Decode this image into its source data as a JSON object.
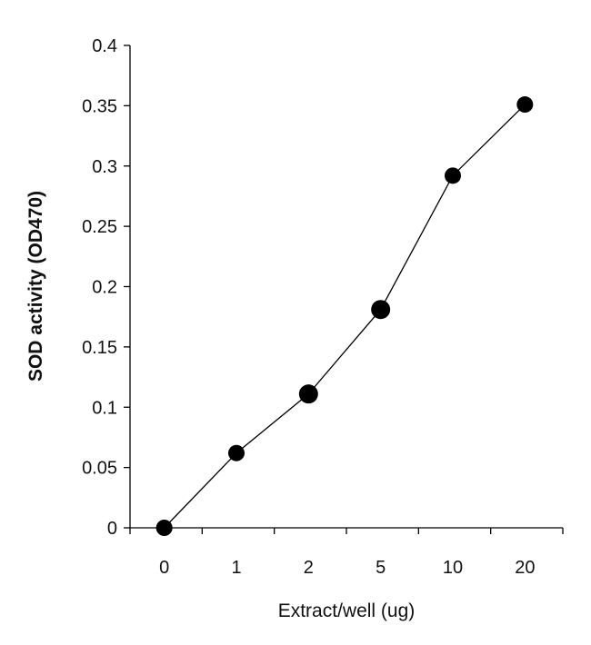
{
  "chart_data": {
    "type": "line",
    "categories": [
      "0",
      "1",
      "2",
      "5",
      "10",
      "20"
    ],
    "series": [
      {
        "values": [
          0.0,
          0.062,
          0.111,
          0.181,
          0.292,
          0.351
        ]
      }
    ],
    "xlabel": "Extract/well (ug)",
    "ylabel": "SOD activity (OD470)",
    "ylim": [
      0,
      0.4
    ],
    "yticks": [
      "0",
      "0.05",
      "0.1",
      "0.15",
      "0.2",
      "0.25",
      "0.3",
      "0.35",
      "0.4"
    ],
    "grid": false,
    "legend": "none",
    "colors": {
      "line": "#000000",
      "marker": "#000000",
      "axis": "#000000"
    }
  }
}
